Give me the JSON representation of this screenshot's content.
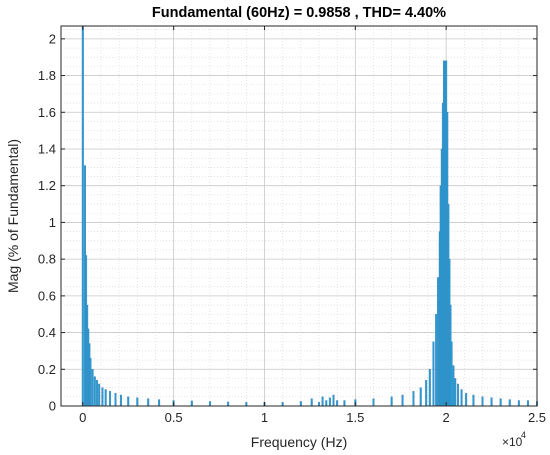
{
  "chart_data": {
    "type": "bar",
    "title": "Fundamental (60Hz) = 0.9858 , THD= 4.40%",
    "xlabel": "Frequency (Hz)",
    "ylabel": "Mag (% of Fundamental)",
    "x_exponent_base": "×10",
    "x_exponent_power": "4",
    "xlim": [
      -1200,
      25000
    ],
    "ylim": [
      0,
      2.07
    ],
    "xticks": [
      0,
      5000,
      10000,
      15000,
      20000,
      25000
    ],
    "xtick_labels": [
      "0",
      "0.5",
      "1",
      "1.5",
      "2",
      "2.5"
    ],
    "yticks": [
      0,
      0.2,
      0.4,
      0.6,
      0.8,
      1,
      1.2,
      1.4,
      1.6,
      1.8,
      2
    ],
    "ytick_labels": [
      "0",
      "0.2",
      "0.4",
      "0.6",
      "0.8",
      "1",
      "1.2",
      "1.4",
      "1.6",
      "1.8",
      "2"
    ],
    "grid": true,
    "minor_grid": true,
    "bar_color": "#1f9fd9",
    "x": [
      0,
      120,
      180,
      240,
      300,
      360,
      420,
      540,
      660,
      780,
      900,
      1080,
      1260,
      1500,
      1800,
      2100,
      2500,
      3000,
      3600,
      4200,
      5000,
      6000,
      7000,
      8000,
      9000,
      10000,
      11000,
      12000,
      12600,
      13000,
      13200,
      13400,
      13600,
      13800,
      14000,
      14400,
      15000,
      16000,
      17000,
      17600,
      18200,
      18600,
      18900,
      19100,
      19300,
      19450,
      19550,
      19650,
      19700,
      19760,
      19820,
      19880,
      19940,
      20000,
      20060,
      20120,
      20180,
      20240,
      20300,
      20400,
      20500,
      20650,
      20850,
      21100,
      21500,
      22000,
      22500,
      23000,
      23500,
      24000,
      24500,
      25000
    ],
    "values": [
      2.07,
      1.31,
      0.82,
      0.55,
      0.42,
      0.34,
      0.26,
      0.2,
      0.16,
      0.14,
      0.12,
      0.1,
      0.09,
      0.08,
      0.07,
      0.06,
      0.05,
      0.045,
      0.04,
      0.035,
      0.03,
      0.028,
      0.025,
      0.022,
      0.02,
      0.02,
      0.02,
      0.025,
      0.04,
      0.02,
      0.05,
      0.03,
      0.045,
      0.06,
      0.03,
      0.03,
      0.035,
      0.04,
      0.05,
      0.06,
      0.08,
      0.1,
      0.14,
      0.2,
      0.35,
      0.5,
      0.7,
      0.95,
      1.2,
      1.4,
      1.65,
      1.88,
      1.88,
      1.88,
      1.6,
      1.1,
      0.8,
      0.55,
      0.35,
      0.22,
      0.15,
      0.12,
      0.09,
      0.07,
      0.06,
      0.05,
      0.045,
      0.04,
      0.035,
      0.03,
      0.03,
      0.025
    ]
  }
}
